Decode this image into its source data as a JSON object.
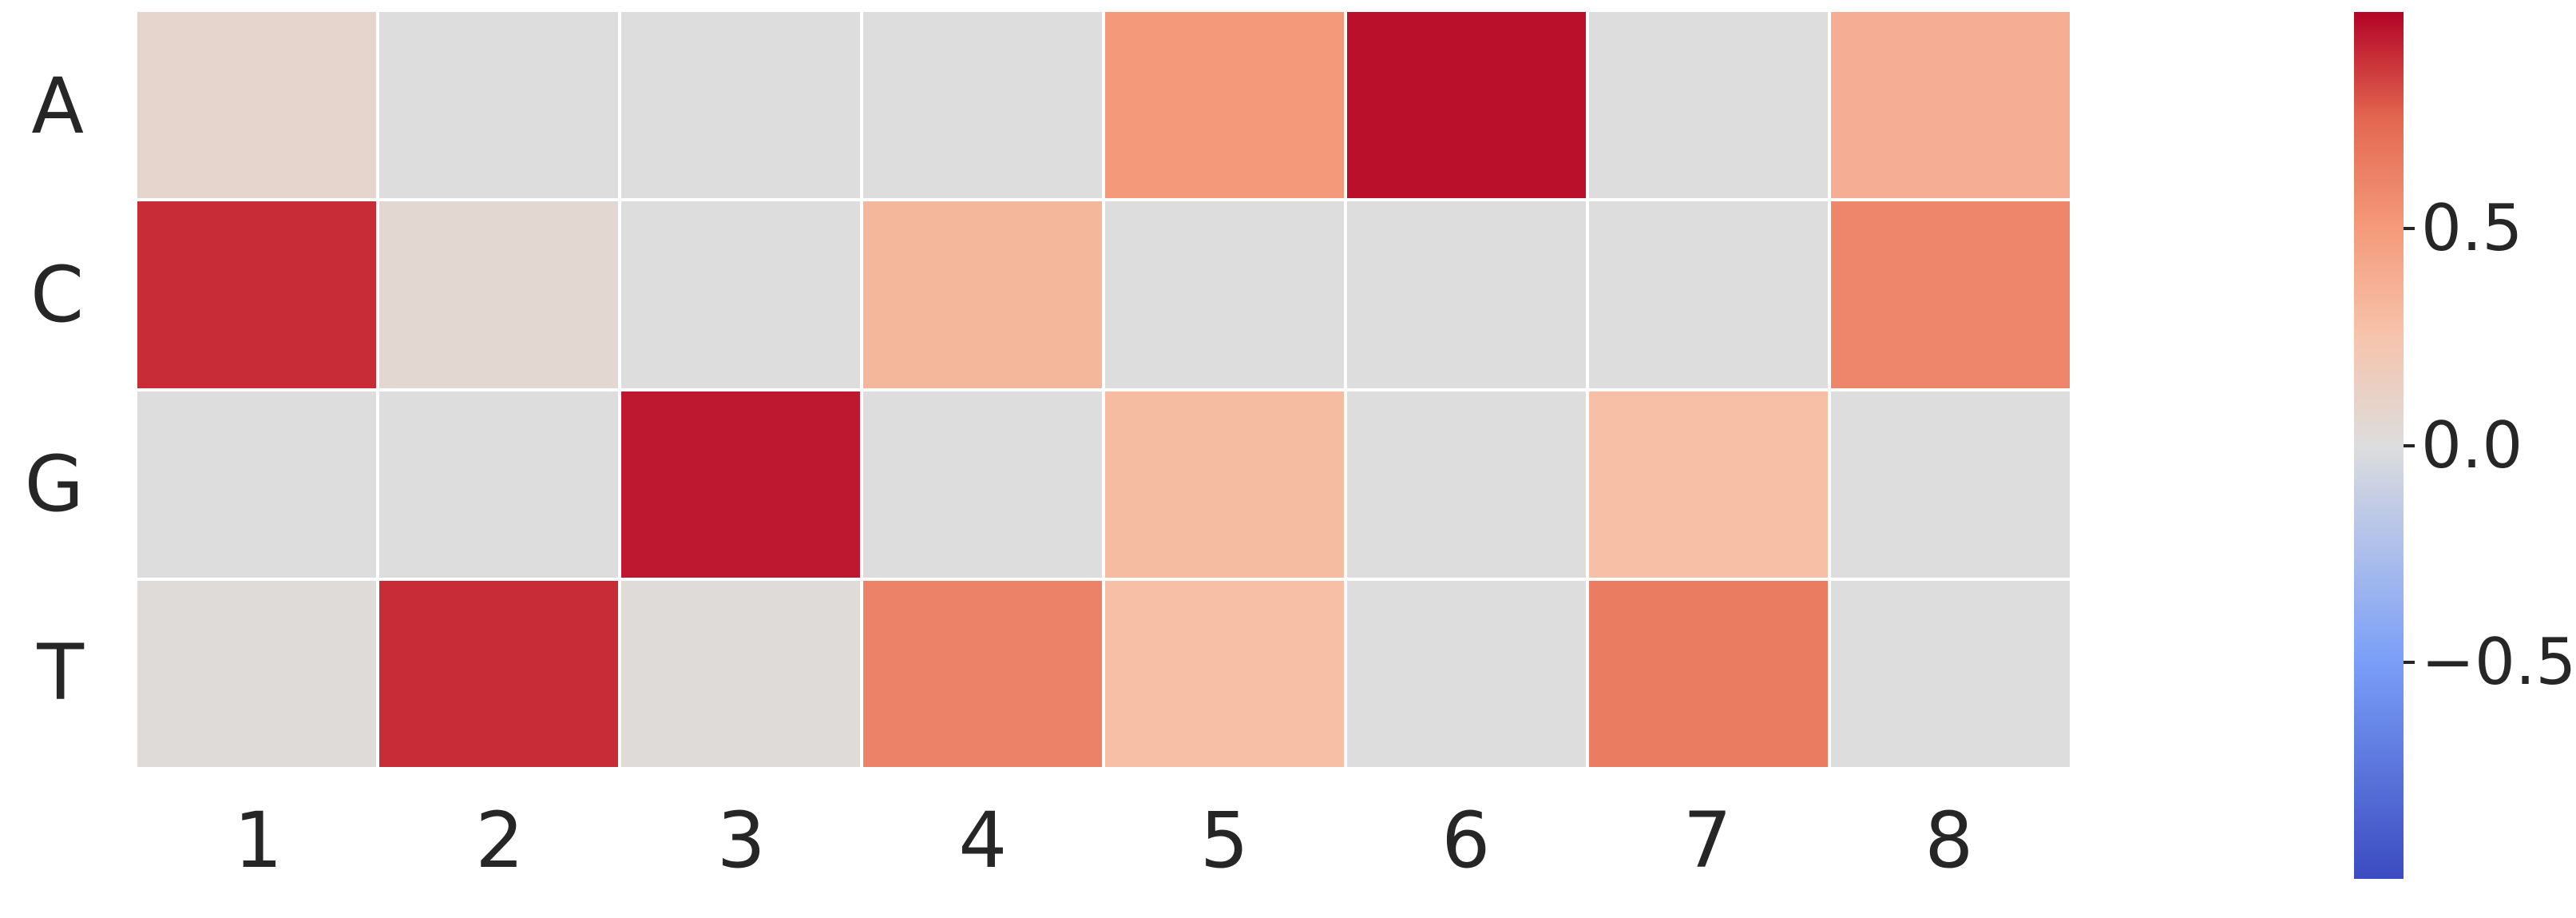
{
  "chart_data": {
    "type": "heatmap",
    "title": "",
    "xlabel": "",
    "ylabel": "",
    "rows": [
      "A",
      "C",
      "G",
      "T"
    ],
    "columns": [
      "1",
      "2",
      "3",
      "4",
      "5",
      "6",
      "7",
      "8"
    ],
    "values": [
      [
        0.08,
        0.0,
        0.0,
        0.0,
        0.5,
        0.97,
        0.0,
        0.38
      ],
      [
        0.9,
        0.06,
        0.0,
        0.33,
        0.0,
        0.0,
        0.0,
        0.6
      ],
      [
        0.0,
        0.0,
        0.95,
        0.0,
        0.3,
        0.0,
        0.28,
        0.0
      ],
      [
        0.02,
        0.9,
        0.02,
        0.62,
        0.28,
        0.0,
        0.65,
        0.0
      ]
    ],
    "vmin": -1.0,
    "vmax": 1.0,
    "colormap": "coolwarm",
    "grid": false,
    "legend_position": "none",
    "colorbar": {
      "position": "right",
      "ticks": [
        0.5,
        0.0,
        -0.5
      ],
      "tick_labels": [
        "0.5",
        "0.0",
        "−0.5"
      ]
    }
  },
  "colors": {
    "background": "#ffffff",
    "label_color": "#262626",
    "neutral_cell": "#dddddd",
    "max_red": "#b40426",
    "min_blue": "#3b4cc0",
    "colormap_anchors": [
      {
        "t": 0.0,
        "rgb": [
          59,
          76,
          192
        ]
      },
      {
        "t": 0.25,
        "rgb": [
          122,
          158,
          248
        ]
      },
      {
        "t": 0.5,
        "rgb": [
          221,
          221,
          221
        ]
      },
      {
        "t": 0.625,
        "rgb": [
          246,
          196,
          172
        ]
      },
      {
        "t": 0.75,
        "rgb": [
          244,
          154,
          123
        ]
      },
      {
        "t": 0.875,
        "rgb": [
          227,
          104,
          81
        ]
      },
      {
        "t": 1.0,
        "rgb": [
          180,
          4,
          38
        ]
      }
    ]
  }
}
